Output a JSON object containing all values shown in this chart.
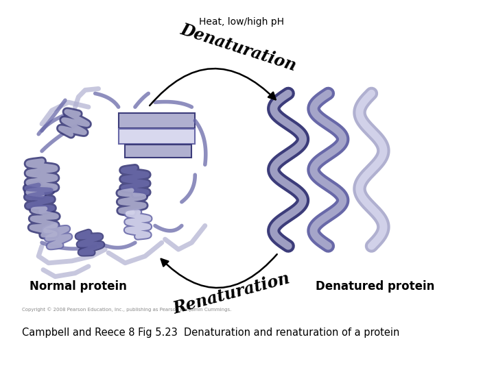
{
  "title": "Heat, low/high pH",
  "title_fontsize": 10,
  "caption": "Campbell and Reece 8 Fig 5.23  Denaturation and renaturation of a protein",
  "caption_fontsize": 10.5,
  "copyright": "Copyright © 2008 Pearson Education, Inc., publishing as Pearson Benjamin Cummings.",
  "copyright_fontsize": 5,
  "label_normal": "Normal protein",
  "label_denatured": "Denatured protein",
  "label_denaturation": "Denaturation",
  "label_renaturation": "Renaturation",
  "label_fontsize": 12,
  "arrow_label_fontsize": 17,
  "bg_color": "#ffffff",
  "protein_color_dark": "#3c3c7a",
  "protein_color_mid": "#6868a8",
  "protein_color_light": "#b0b0d0",
  "protein_color_vlight": "#d8d8ee",
  "arrow_color": "#000000",
  "fig_width": 7.2,
  "fig_height": 5.4
}
